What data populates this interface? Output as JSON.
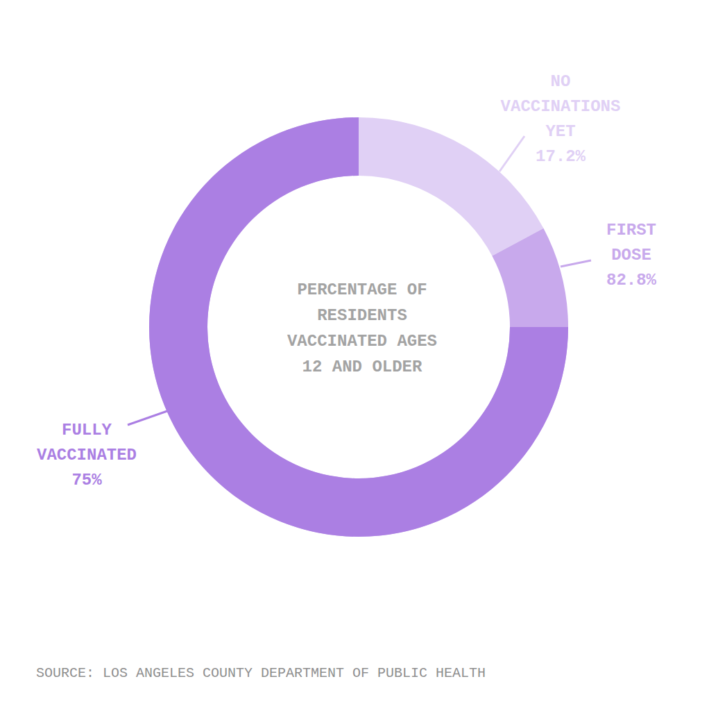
{
  "chart_data": {
    "type": "pie",
    "title": "PERCENTAGE OF RESIDENTS VACCINATED AGES 12 AND OLDER",
    "categories": [
      "NO VACCINATIONS YET",
      "FIRST DOSE",
      "FULLY VACCINATED"
    ],
    "values": [
      17.2,
      82.8,
      75
    ],
    "value_labels": [
      "17.2%",
      "82.8%",
      "75%"
    ],
    "colors": [
      "#e0d0f5",
      "#c8a9ec",
      "#ab7fe3"
    ],
    "data_labels": true,
    "source": "SOURCE: LOS ANGELES COUNTY DEPARTMENT OF PUBLIC HEALTH"
  }
}
